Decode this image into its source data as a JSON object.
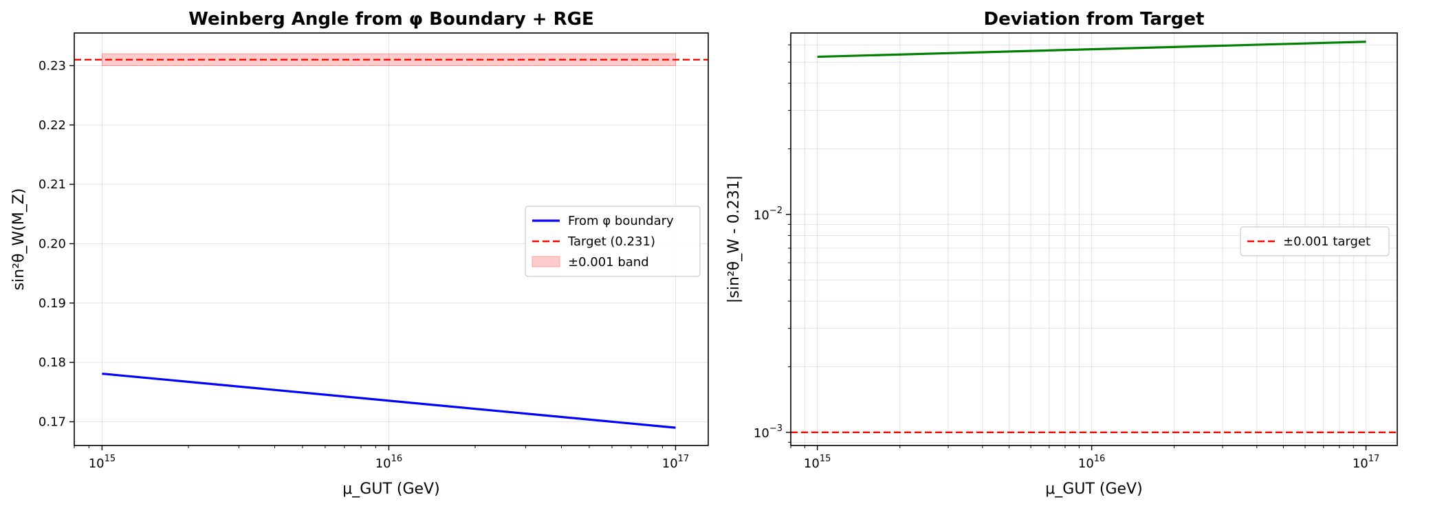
{
  "chart_data": [
    {
      "type": "line",
      "title": "Weinberg Angle from φ Boundary + RGE",
      "xlabel": "μ_GUT (GeV)",
      "ylabel": "sin²θ_W(M_Z)",
      "xscale": "log",
      "xlim": [
        800000000000000.0,
        1.3e+17
      ],
      "ylim": [
        0.166,
        0.2355
      ],
      "xticks": [
        1000000000000000.0,
        1e+16,
        1e+17
      ],
      "xtick_exponents": [
        "15",
        "16",
        "17"
      ],
      "yticks": [
        0.17,
        0.18,
        0.19,
        0.2,
        0.21,
        0.22,
        0.23
      ],
      "ytick_labels": [
        "0.17",
        "0.18",
        "0.19",
        "0.20",
        "0.21",
        "0.22",
        "0.23"
      ],
      "grid": true,
      "legend_position": "center-right",
      "series": [
        {
          "name": "From φ boundary",
          "kind": "line",
          "color": "#0000ff",
          "x": [
            1000000000000000.0,
            1e+17
          ],
          "y": [
            0.1781,
            0.169
          ]
        },
        {
          "name": "Target (0.231)",
          "kind": "hline-dashed",
          "color": "#ff0000",
          "y": 0.231
        },
        {
          "name": "±0.001 band",
          "kind": "band",
          "color": "#ff0000",
          "x": [
            1000000000000000.0,
            1e+17
          ],
          "y_low": 0.23,
          "y_high": 0.232
        }
      ]
    },
    {
      "type": "line",
      "title": "Deviation from Target",
      "xlabel": "μ_GUT (GeV)",
      "ylabel": "|sin²θ_W - 0.231|",
      "xscale": "log",
      "yscale": "log",
      "xlim": [
        800000000000000.0,
        1.3e+17
      ],
      "ylim": [
        0.00087,
        0.068
      ],
      "xticks": [
        1000000000000000.0,
        1e+16,
        1e+17
      ],
      "xtick_exponents": [
        "15",
        "16",
        "17"
      ],
      "yticks": [
        0.001,
        0.01
      ],
      "ytick_exponents": [
        "−3",
        "−2"
      ],
      "grid": true,
      "legend_position": "center-right",
      "series": [
        {
          "name": "",
          "kind": "line",
          "color": "#008000",
          "x": [
            1000000000000000.0,
            1e+17
          ],
          "y": [
            0.0529,
            0.062
          ]
        },
        {
          "name": "±0.001 target",
          "kind": "hline-dashed",
          "color": "#ff0000",
          "y": 0.001
        }
      ]
    }
  ]
}
